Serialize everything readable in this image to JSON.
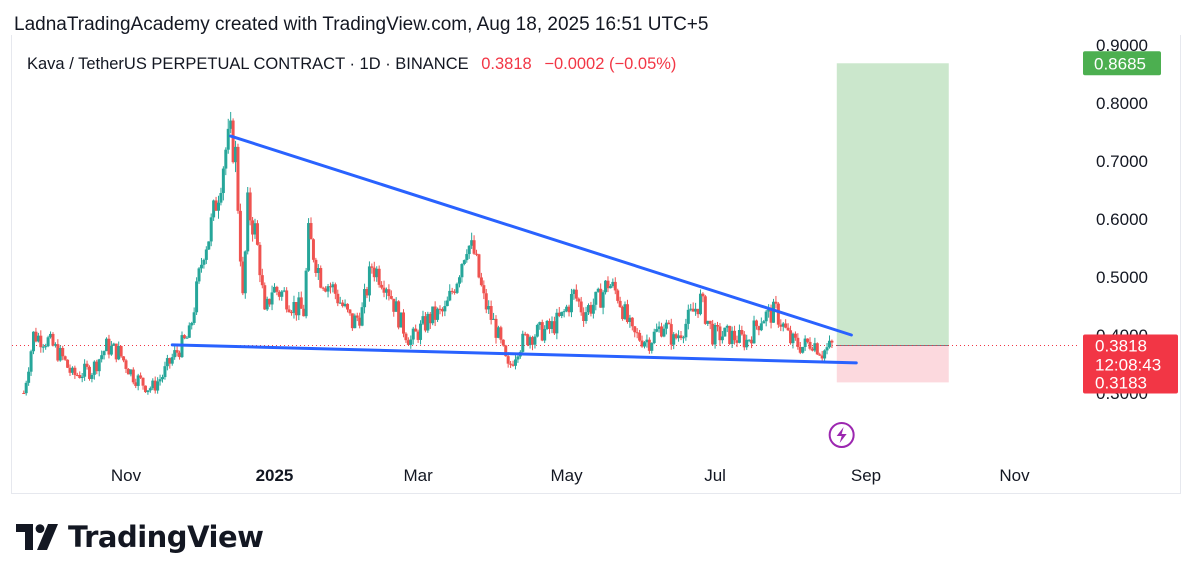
{
  "header": {
    "attribution": "LadnaTradingAcademy created with TradingView.com, Aug 18, 2025 16:51 UTC+5"
  },
  "legend": {
    "symbol": "Kava / TetherUS PERPETUAL CONTRACT · 1D · BINANCE",
    "price": "0.3818",
    "change": "−0.0002 (−0.05%)"
  },
  "brand": {
    "name": "TradingView",
    "logo": "tradingview-logo"
  },
  "colors": {
    "up": "#26a69a",
    "down": "#ef5350",
    "trendline": "#2962ff",
    "target_zone": "#c8e6c9",
    "stop_zone": "#fcd9de",
    "price_label": "#f23645",
    "target_label": "#4caf50"
  },
  "icons": {
    "flash": "lightning-bolt-icon"
  },
  "chart_data": {
    "type": "candlestick",
    "title": "Kava / TetherUS PERPETUAL CONTRACT · 1D · BINANCE",
    "interval": "1D",
    "x_range": [
      "2024-09-20",
      "2025-11-20"
    ],
    "ylim": [
      0.235,
      0.915
    ],
    "y_ticks": [
      "0.3000",
      "0.4000",
      "0.5000",
      "0.6000",
      "0.7000",
      "0.8000",
      "0.9000"
    ],
    "x_ticks": [
      {
        "date": "2024-11-01",
        "label": "Nov"
      },
      {
        "date": "2025-01-01",
        "label": "2025"
      },
      {
        "date": "2025-03-01",
        "label": "Mar"
      },
      {
        "date": "2025-05-01",
        "label": "May"
      },
      {
        "date": "2025-07-01",
        "label": "Jul"
      },
      {
        "date": "2025-09-01",
        "label": "Sep"
      },
      {
        "date": "2025-11-01",
        "label": "Nov"
      }
    ],
    "close_path": [
      [
        "2024-09-20",
        0.3
      ],
      [
        "2024-09-24",
        0.4
      ],
      [
        "2024-09-30",
        0.39
      ],
      [
        "2024-10-06",
        0.36
      ],
      [
        "2024-10-10",
        0.33
      ],
      [
        "2024-10-18",
        0.34
      ],
      [
        "2024-10-24",
        0.38
      ],
      [
        "2024-10-29",
        0.37
      ],
      [
        "2024-11-04",
        0.33
      ],
      [
        "2024-11-10",
        0.31
      ],
      [
        "2024-11-12",
        0.31
      ],
      [
        "2024-11-16",
        0.33
      ],
      [
        "2024-11-20",
        0.36
      ],
      [
        "2024-11-27",
        0.4
      ],
      [
        "2024-12-03",
        0.55
      ],
      [
        "2024-12-05",
        0.57
      ],
      [
        "2024-12-09",
        0.65
      ],
      [
        "2024-12-12",
        0.72
      ],
      [
        "2024-12-14",
        0.74
      ],
      [
        "2024-12-16",
        0.71
      ],
      [
        "2024-12-19",
        0.46
      ],
      [
        "2024-12-21",
        0.62
      ],
      [
        "2024-12-24",
        0.58
      ],
      [
        "2024-12-26",
        0.52
      ],
      [
        "2024-12-28",
        0.43
      ],
      [
        "2024-12-31",
        0.48
      ],
      [
        "2025-01-05",
        0.47
      ],
      [
        "2025-01-09",
        0.45
      ],
      [
        "2025-01-13",
        0.44
      ],
      [
        "2025-01-15",
        0.57
      ],
      [
        "2025-01-20",
        0.5
      ],
      [
        "2025-01-25",
        0.48
      ],
      [
        "2025-02-02",
        0.42
      ],
      [
        "2025-02-06",
        0.44
      ],
      [
        "2025-02-10",
        0.52
      ],
      [
        "2025-02-16",
        0.49
      ],
      [
        "2025-02-22",
        0.42
      ],
      [
        "2025-02-26",
        0.39
      ],
      [
        "2025-03-02",
        0.41
      ],
      [
        "2025-03-06",
        0.43
      ],
      [
        "2025-03-12",
        0.44
      ],
      [
        "2025-03-17",
        0.5
      ],
      [
        "2025-03-21",
        0.56
      ],
      [
        "2025-03-24",
        0.54
      ],
      [
        "2025-03-28",
        0.46
      ],
      [
        "2025-04-02",
        0.41
      ],
      [
        "2025-04-07",
        0.34
      ],
      [
        "2025-04-11",
        0.38
      ],
      [
        "2025-04-16",
        0.4
      ],
      [
        "2025-04-24",
        0.41
      ],
      [
        "2025-04-29",
        0.43
      ],
      [
        "2025-05-04",
        0.47
      ],
      [
        "2025-05-08",
        0.44
      ],
      [
        "2025-05-14",
        0.46
      ],
      [
        "2025-05-18",
        0.49
      ],
      [
        "2025-05-22",
        0.47
      ],
      [
        "2025-05-28",
        0.4
      ],
      [
        "2025-06-04",
        0.39
      ],
      [
        "2025-06-10",
        0.42
      ],
      [
        "2025-06-14",
        0.39
      ],
      [
        "2025-06-19",
        0.42
      ],
      [
        "2025-06-25",
        0.46
      ],
      [
        "2025-06-30",
        0.4
      ],
      [
        "2025-07-06",
        0.4
      ],
      [
        "2025-07-14",
        0.39
      ],
      [
        "2025-07-20",
        0.43
      ],
      [
        "2025-07-26",
        0.44
      ],
      [
        "2025-08-01",
        0.39
      ],
      [
        "2025-08-06",
        0.38
      ],
      [
        "2025-08-10",
        0.39
      ],
      [
        "2025-08-14",
        0.37
      ],
      [
        "2025-08-18",
        0.3818
      ]
    ],
    "trendlines": [
      {
        "name": "upper",
        "from": [
          "2024-12-14",
          0.743
        ],
        "to": [
          "2025-08-26",
          0.4
        ]
      },
      {
        "name": "lower",
        "from": [
          "2024-11-20",
          0.383
        ],
        "to": [
          "2025-08-28",
          0.352
        ]
      }
    ],
    "position": {
      "type": "long",
      "start": "2025-08-20",
      "end": "2025-10-05",
      "entry": 0.3818,
      "target": 0.8685,
      "stop": 0.3183
    },
    "labels": {
      "current_price": "0.3818",
      "countdown": "12:08:43",
      "stop": "0.3183",
      "target": "0.8685"
    }
  }
}
